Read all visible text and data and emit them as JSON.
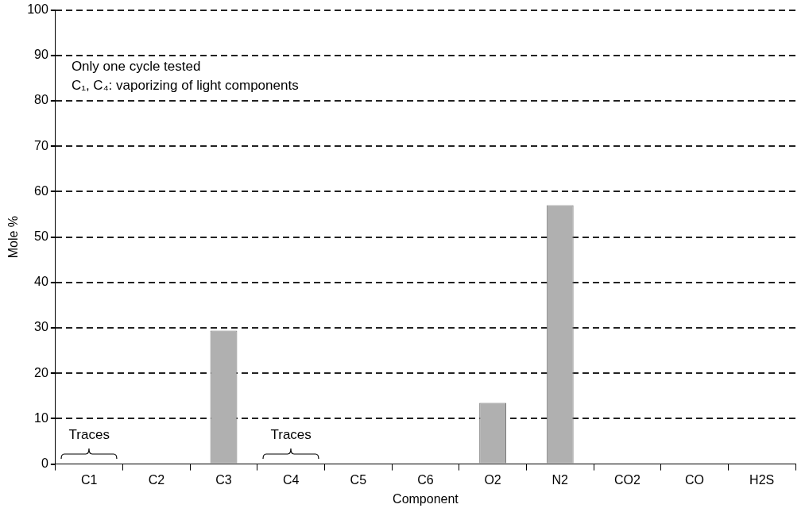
{
  "chart_data": {
    "type": "bar",
    "xlabel": "Component",
    "ylabel": "Mole %",
    "categories": [
      "C1",
      "C2",
      "C3",
      "C4",
      "C5",
      "C6",
      "O2",
      "N2",
      "CO2",
      "CO",
      "H2S"
    ],
    "values": [
      0,
      0,
      29.4,
      0,
      0,
      0,
      13.5,
      57,
      0,
      0,
      0
    ],
    "color": "#b0b0b0",
    "ylim": [
      0,
      100
    ],
    "yticks": [
      0,
      10,
      20,
      30,
      40,
      50,
      60,
      70,
      80,
      90,
      100
    ],
    "grid": "y",
    "line_style": "dashed",
    "legend": false,
    "annotations": [
      "Only one cycle tested",
      "C₁, C₄: vaporizing of light components",
      {
        "text": "Traces",
        "x": "C1",
        "y": 0
      },
      {
        "text": "Traces",
        "x": "C4",
        "y": 0
      }
    ]
  }
}
